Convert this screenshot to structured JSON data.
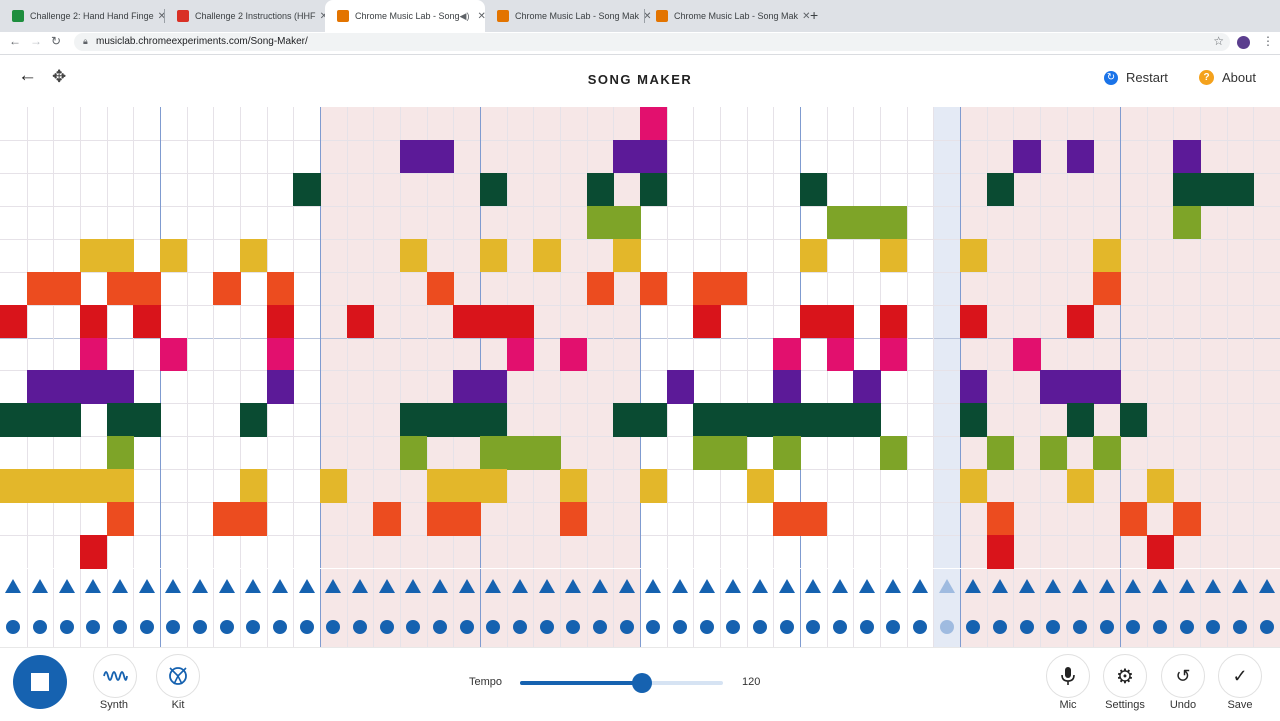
{
  "browser": {
    "tabs": [
      {
        "title": "Challenge 2: Hand Hand Finge",
        "favicon_color": "#1e8e3e",
        "active": false
      },
      {
        "title": "Challenge 2 Instructions (HHF",
        "favicon_color": "#d93025",
        "active": false
      },
      {
        "title": "Chrome Music Lab - Song",
        "favicon_color": "#e37400",
        "active": true
      },
      {
        "title": "Chrome Music Lab - Song Mak",
        "favicon_color": "#e37400",
        "active": false
      },
      {
        "title": "Chrome Music Lab - Song Mak",
        "favicon_color": "#e37400",
        "active": false
      }
    ],
    "url": "musiclab.chromeexperiments.com/Song-Maker/"
  },
  "app": {
    "title": "SONG MAKER",
    "restart_label": "Restart",
    "about_label": "About"
  },
  "grid": {
    "columns": 48,
    "rows": 14,
    "beats_per_bar": 6,
    "current_column": 35,
    "shaded_column_ranges": [
      [
        12,
        23
      ],
      [
        36,
        47
      ]
    ],
    "row_colors": [
      "#e2106e",
      "#5c1a98",
      "#0a4b32",
      "#7ea428",
      "#e3b72a",
      "#ec4c1f",
      "#d9141b",
      "#e2106e",
      "#5c1a98",
      "#0a4b32",
      "#7ea428",
      "#e3b72a",
      "#ec4c1f",
      "#d9141b"
    ],
    "notes": [
      [
        0,
        24
      ],
      [
        1,
        15
      ],
      [
        1,
        16
      ],
      [
        1,
        23
      ],
      [
        1,
        24
      ],
      [
        1,
        38
      ],
      [
        1,
        40
      ],
      [
        1,
        44
      ],
      [
        2,
        11
      ],
      [
        2,
        18
      ],
      [
        2,
        22
      ],
      [
        2,
        24
      ],
      [
        2,
        30
      ],
      [
        2,
        37
      ],
      [
        2,
        44
      ],
      [
        2,
        45
      ],
      [
        2,
        46
      ],
      [
        3,
        22
      ],
      [
        3,
        23
      ],
      [
        3,
        31
      ],
      [
        3,
        32
      ],
      [
        3,
        33
      ],
      [
        3,
        44
      ],
      [
        4,
        3
      ],
      [
        4,
        4
      ],
      [
        4,
        6
      ],
      [
        4,
        9
      ],
      [
        4,
        15
      ],
      [
        4,
        18
      ],
      [
        4,
        20
      ],
      [
        4,
        23
      ],
      [
        4,
        30
      ],
      [
        4,
        33
      ],
      [
        4,
        36
      ],
      [
        4,
        41
      ],
      [
        5,
        1
      ],
      [
        5,
        2
      ],
      [
        5,
        4
      ],
      [
        5,
        5
      ],
      [
        5,
        8
      ],
      [
        5,
        10
      ],
      [
        5,
        16
      ],
      [
        5,
        22
      ],
      [
        5,
        24
      ],
      [
        5,
        26
      ],
      [
        5,
        27
      ],
      [
        5,
        41
      ],
      [
        6,
        0
      ],
      [
        6,
        3
      ],
      [
        6,
        5
      ],
      [
        6,
        10
      ],
      [
        6,
        13
      ],
      [
        6,
        17
      ],
      [
        6,
        18
      ],
      [
        6,
        19
      ],
      [
        6,
        26
      ],
      [
        6,
        30
      ],
      [
        6,
        31
      ],
      [
        6,
        33
      ],
      [
        6,
        36
      ],
      [
        6,
        40
      ],
      [
        7,
        3
      ],
      [
        7,
        6
      ],
      [
        7,
        10
      ],
      [
        7,
        19
      ],
      [
        7,
        21
      ],
      [
        7,
        29
      ],
      [
        7,
        31
      ],
      [
        7,
        33
      ],
      [
        7,
        38
      ],
      [
        8,
        1
      ],
      [
        8,
        2
      ],
      [
        8,
        3
      ],
      [
        8,
        4
      ],
      [
        8,
        10
      ],
      [
        8,
        17
      ],
      [
        8,
        18
      ],
      [
        8,
        25
      ],
      [
        8,
        29
      ],
      [
        8,
        32
      ],
      [
        8,
        36
      ],
      [
        8,
        39
      ],
      [
        8,
        40
      ],
      [
        8,
        41
      ],
      [
        9,
        0
      ],
      [
        9,
        1
      ],
      [
        9,
        2
      ],
      [
        9,
        4
      ],
      [
        9,
        5
      ],
      [
        9,
        9
      ],
      [
        9,
        15
      ],
      [
        9,
        16
      ],
      [
        9,
        17
      ],
      [
        9,
        18
      ],
      [
        9,
        23
      ],
      [
        9,
        24
      ],
      [
        9,
        26
      ],
      [
        9,
        27
      ],
      [
        9,
        28
      ],
      [
        9,
        29
      ],
      [
        9,
        30
      ],
      [
        9,
        31
      ],
      [
        9,
        32
      ],
      [
        9,
        36
      ],
      [
        9,
        40
      ],
      [
        9,
        42
      ],
      [
        10,
        4
      ],
      [
        10,
        15
      ],
      [
        10,
        18
      ],
      [
        10,
        19
      ],
      [
        10,
        20
      ],
      [
        10,
        26
      ],
      [
        10,
        27
      ],
      [
        10,
        29
      ],
      [
        10,
        33
      ],
      [
        10,
        37
      ],
      [
        10,
        39
      ],
      [
        10,
        41
      ],
      [
        11,
        0
      ],
      [
        11,
        1
      ],
      [
        11,
        2
      ],
      [
        11,
        3
      ],
      [
        11,
        4
      ],
      [
        11,
        9
      ],
      [
        11,
        12
      ],
      [
        11,
        16
      ],
      [
        11,
        17
      ],
      [
        11,
        18
      ],
      [
        11,
        21
      ],
      [
        11,
        24
      ],
      [
        11,
        28
      ],
      [
        11,
        36
      ],
      [
        11,
        40
      ],
      [
        11,
        43
      ],
      [
        12,
        4
      ],
      [
        12,
        8
      ],
      [
        12,
        9
      ],
      [
        12,
        14
      ],
      [
        12,
        16
      ],
      [
        12,
        17
      ],
      [
        12,
        21
      ],
      [
        12,
        29
      ],
      [
        12,
        30
      ],
      [
        12,
        37
      ],
      [
        12,
        42
      ],
      [
        12,
        44
      ],
      [
        13,
        3
      ],
      [
        13,
        37
      ],
      [
        13,
        43
      ]
    ]
  },
  "controls": {
    "synth_label": "Synth",
    "kit_label": "Kit",
    "tempo_label": "Tempo",
    "tempo_value": "120",
    "tempo_fraction": 0.6,
    "mic_label": "Mic",
    "settings_label": "Settings",
    "undo_label": "Undo",
    "save_label": "Save"
  },
  "icons": {
    "back": "arrow-left-icon",
    "move": "move-arrows-icon",
    "restart": "restart-icon",
    "about": "question-icon",
    "stop": "stop-icon",
    "synth": "waveform-icon",
    "kit": "drum-kit-icon",
    "mic": "microphone-icon",
    "settings": "gear-icon",
    "undo": "undo-icon",
    "save": "checkmark-icon"
  },
  "colors": {
    "accent": "#1662b0",
    "shaded_bar": "#f6e7e7",
    "current_column": "#e4eaf5"
  }
}
